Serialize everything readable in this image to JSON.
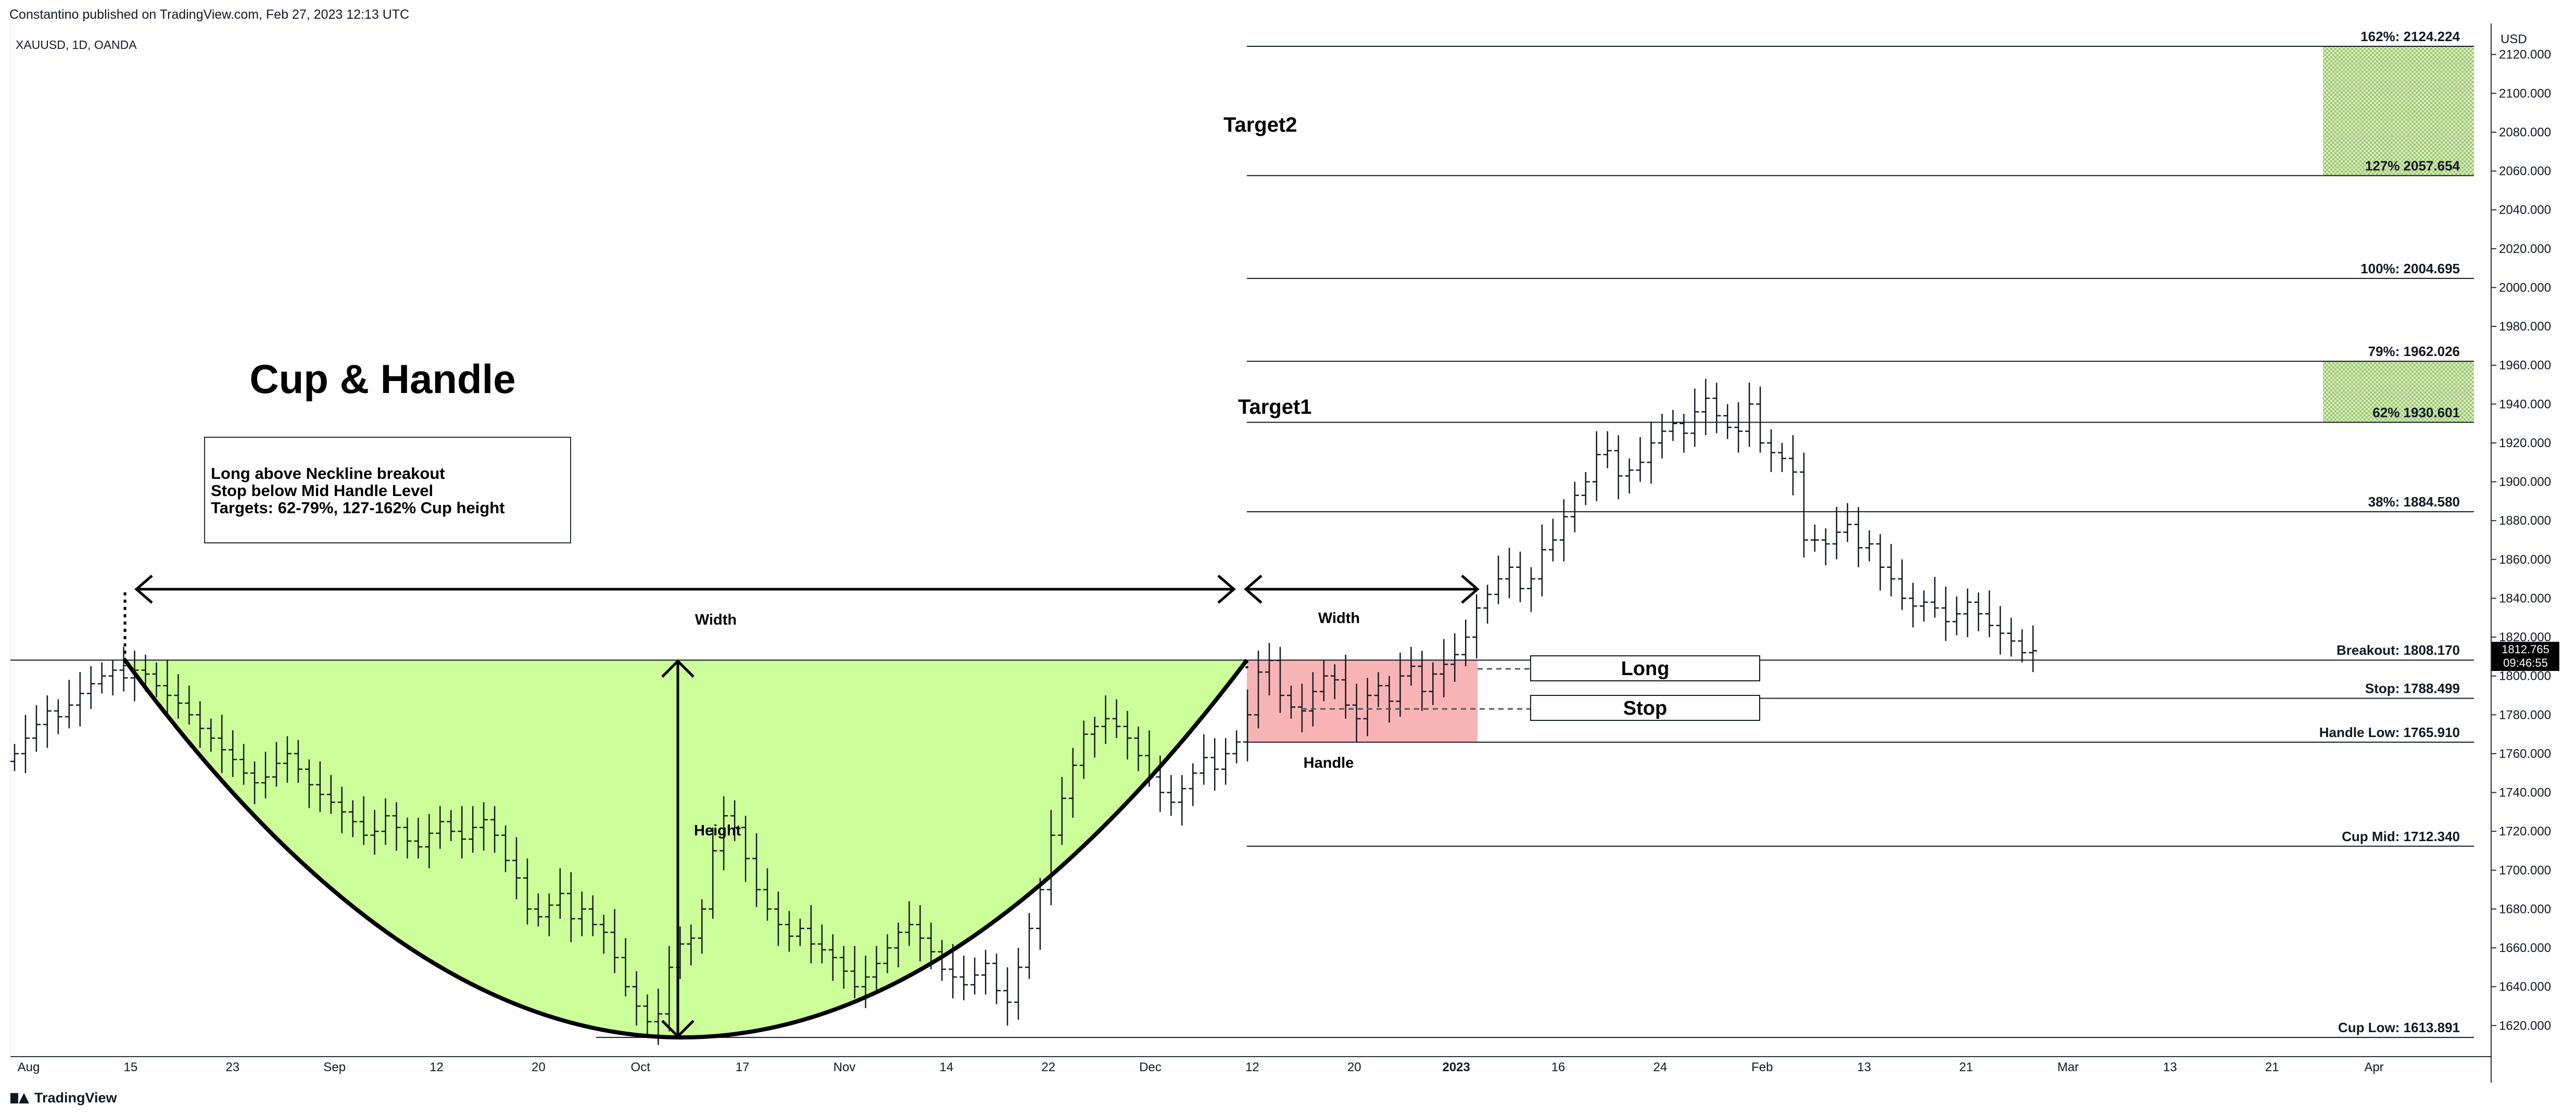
{
  "header": {
    "published_by": "Constantino published on TradingView.com, Feb 27, 2023 12:13 UTC",
    "symbol": "XAUUSD, 1D, OANDA"
  },
  "footer": {
    "brand": "TradingView"
  },
  "chart_data": {
    "type": "bar",
    "title": "Cup & Handle",
    "currency": "USD",
    "ylim": [
      1604,
      2136
    ],
    "y_ticks": [
      1620,
      1640,
      1660,
      1680,
      1700,
      1720,
      1740,
      1760,
      1780,
      1800,
      1820,
      1840,
      1860,
      1880,
      1900,
      1920,
      1940,
      1960,
      1980,
      2000,
      2020,
      2040,
      2060,
      2080,
      2100,
      2120
    ],
    "x_tick_labels": [
      "Aug",
      "15",
      "23",
      "Sep",
      "12",
      "20",
      "Oct",
      "17",
      "Nov",
      "14",
      "22",
      "Dec",
      "12",
      "20",
      "2023",
      "16",
      "24",
      "Feb",
      "13",
      "21",
      "Mar",
      "13",
      "21",
      "Apr"
    ],
    "bold_x_ticks": [
      "2023"
    ],
    "last_price": "1812.765",
    "countdown": "09:46:55",
    "levels": [
      {
        "label": "162%: 2124.224",
        "value": 2124.224
      },
      {
        "label": "127% 2057.654",
        "value": 2057.654
      },
      {
        "label": "100%: 2004.695",
        "value": 2004.695
      },
      {
        "label": "79%: 1962.026",
        "value": 1962.026
      },
      {
        "label": "62% 1930.601",
        "value": 1930.601
      },
      {
        "label": "38%: 1884.580",
        "value": 1884.58
      },
      {
        "label": "Breakout: 1808.170",
        "value": 1808.17
      },
      {
        "label": "Stop: 1788.499",
        "value": 1788.499
      },
      {
        "label": "Handle Low: 1765.910",
        "value": 1765.91
      },
      {
        "label": "Cup Mid: 1712.340",
        "value": 1712.34
      },
      {
        "label": "Cup Low: 1613.891",
        "value": 1613.891
      }
    ],
    "annotations": {
      "note_lines": [
        "Long above Neckline breakout",
        "Stop below Mid Handle Level",
        "Targets: 62-79%, 127-162% Cup height"
      ],
      "cup_width": "Width",
      "handle_width": "Width",
      "height": "Height",
      "handle": "Handle",
      "long": "Long",
      "stop": "Stop",
      "target1": "Target1",
      "target2": "Target2"
    },
    "colors": {
      "cup_fill": "#ccff99",
      "handle_fill": "#f8b4b4",
      "target_fill": "#ccff99",
      "price_tag": "#000000"
    },
    "price_series": {
      "description": "daily OHLC bars, approximate",
      "closes": [
        1760,
        1768,
        1775,
        1782,
        1779,
        1785,
        1791,
        1796,
        1800,
        1803,
        1799,
        1803,
        1801,
        1795,
        1790,
        1786,
        1780,
        1773,
        1768,
        1762,
        1757,
        1750,
        1745,
        1748,
        1755,
        1760,
        1752,
        1744,
        1739,
        1735,
        1730,
        1725,
        1718,
        1720,
        1728,
        1722,
        1715,
        1712,
        1719,
        1725,
        1720,
        1716,
        1722,
        1726,
        1718,
        1705,
        1696,
        1680,
        1676,
        1682,
        1688,
        1675,
        1680,
        1672,
        1668,
        1655,
        1640,
        1630,
        1622,
        1626,
        1650,
        1662,
        1665,
        1680,
        1710,
        1728,
        1722,
        1706,
        1690,
        1680,
        1672,
        1666,
        1670,
        1662,
        1659,
        1655,
        1648,
        1640,
        1645,
        1652,
        1660,
        1668,
        1672,
        1665,
        1658,
        1649,
        1645,
        1641,
        1646,
        1652,
        1638,
        1632,
        1650,
        1670,
        1690,
        1718,
        1737,
        1754,
        1770,
        1774,
        1778,
        1774,
        1768,
        1759,
        1748,
        1740,
        1735,
        1742,
        1750,
        1758,
        1752,
        1760,
        1766,
        1780,
        1802,
        1808,
        1790,
        1784,
        1782,
        1792,
        1800,
        1798,
        1785,
        1778,
        1790,
        1795,
        1787,
        1800,
        1805,
        1792,
        1801,
        1806,
        1811,
        1820,
        1835,
        1842,
        1850,
        1856,
        1845,
        1850,
        1865,
        1870,
        1882,
        1893,
        1900,
        1914,
        1916,
        1903,
        1906,
        1910,
        1920,
        1926,
        1930,
        1925,
        1936,
        1943,
        1934,
        1928,
        1926,
        1940,
        1920,
        1915,
        1912,
        1905,
        1870,
        1870,
        1868,
        1874,
        1878,
        1866,
        1868,
        1856,
        1850,
        1840,
        1836,
        1838,
        1835,
        1828,
        1832,
        1838,
        1832,
        1826,
        1822,
        1818,
        1812,
        1813
      ]
    }
  }
}
